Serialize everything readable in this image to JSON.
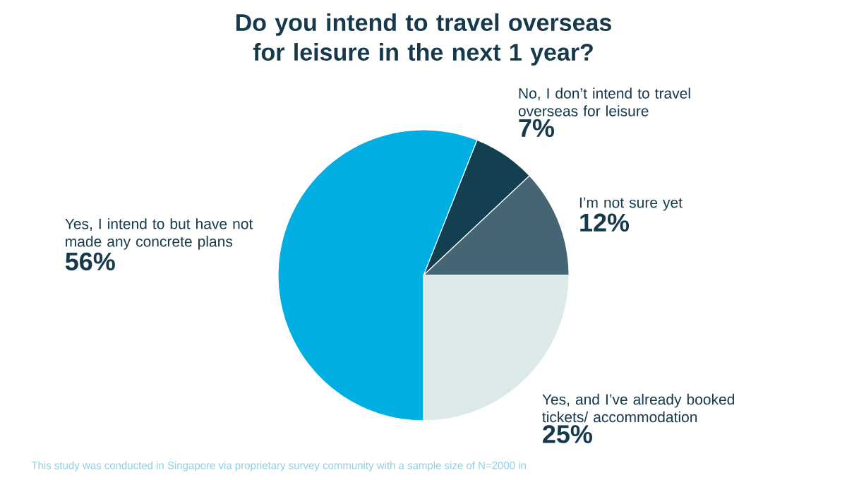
{
  "chart_data": {
    "type": "pie",
    "title": "Do you intend to travel overseas for leisure in the next 1 year?",
    "categories": [
      "No, I don’t intend to travel overseas for leisure",
      "I’m not sure yet",
      "Yes, and I’ve already booked tickets/ accommodation",
      "Yes, I intend to but have not made any concrete plans"
    ],
    "values": [
      7,
      12,
      25,
      56
    ],
    "value_labels": [
      "7%",
      "12%",
      "25%",
      "56%"
    ],
    "colors": [
      "#133f51",
      "#456474",
      "#dce9e8",
      "#00aee2"
    ],
    "legend": false,
    "annotations": [
      "This study was conducted in Singapore via proprietary survey community with a sample size of N=2000 in"
    ]
  }
}
